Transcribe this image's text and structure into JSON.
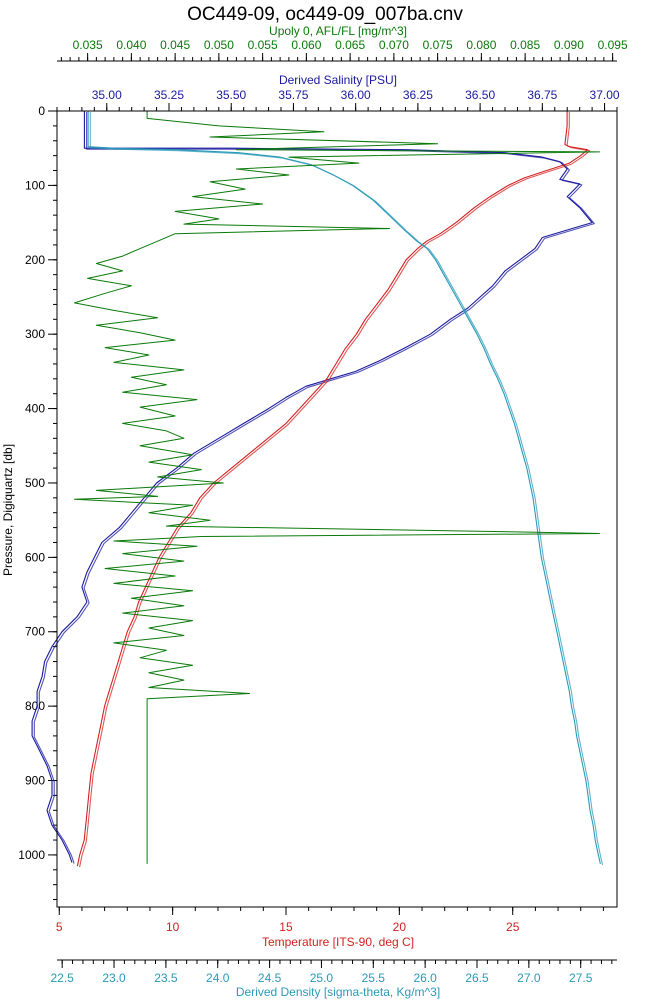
{
  "chart_data": {
    "type": "line",
    "title": "OC449-09, oc449-09_007ba.cnv",
    "colors": {
      "fluorescence": "#0a7a0a",
      "salinity": "#1a1a9e",
      "temperature": "#d42020",
      "density": "#2a9ab8",
      "frame": "#000000"
    },
    "axes": {
      "pressure": {
        "label": "Pressure, Digiquartz [db]",
        "range": [
          0,
          1070
        ],
        "inverted": true,
        "ticks": [
          0,
          100,
          200,
          300,
          400,
          500,
          600,
          700,
          800,
          900,
          1000
        ],
        "tick_labels": [
          "0",
          "100",
          "200",
          "300",
          "400",
          "500",
          "600",
          "700",
          "800",
          "900",
          "1000"
        ]
      },
      "fluorescence": {
        "label": "Upoly 0, AFL/FL [mg/m^3]",
        "range": [
          0.0315,
          0.0955
        ],
        "ticks": [
          0.035,
          0.04,
          0.045,
          0.05,
          0.055,
          0.06,
          0.065,
          0.07,
          0.075,
          0.08,
          0.085,
          0.09,
          0.095
        ],
        "tick_labels": [
          "0.035",
          "0.040",
          "0.045",
          "0.050",
          "0.055",
          "0.060",
          "0.065",
          "0.070",
          "0.075",
          "0.080",
          "0.085",
          "0.090",
          "0.095"
        ]
      },
      "salinity": {
        "label": "Derived Salinity [PSU]",
        "range": [
          34.8,
          37.05
        ],
        "ticks": [
          35.0,
          35.25,
          35.5,
          35.75,
          36.0,
          36.25,
          36.5,
          36.75,
          37.0
        ],
        "tick_labels": [
          "35.00",
          "35.25",
          "35.50",
          "35.75",
          "36.00",
          "36.25",
          "36.50",
          "36.75",
          "37.00"
        ]
      },
      "temperature": {
        "label": "Temperature [ITS-90, deg C]",
        "range": [
          4.9,
          29.6
        ],
        "ticks": [
          5,
          10,
          15,
          20,
          25
        ],
        "tick_labels": [
          "5",
          "10",
          "15",
          "20",
          "25"
        ]
      },
      "density": {
        "label": "Derived Density [sigma-theta, Kg/m^3]",
        "range": [
          22.45,
          27.85
        ],
        "ticks": [
          22.5,
          23.0,
          23.5,
          24.0,
          24.5,
          25.0,
          25.5,
          26.0,
          26.5,
          27.0,
          27.5
        ],
        "tick_labels": [
          "22.5",
          "23.0",
          "23.5",
          "24.0",
          "24.5",
          "25.0",
          "25.5",
          "26.0",
          "26.5",
          "27.0",
          "27.5"
        ]
      }
    },
    "series": [
      {
        "key": "salinity",
        "axis": "salinity",
        "points": [
          [
            34.91,
            0
          ],
          [
            34.91,
            50
          ],
          [
            35.5,
            50
          ],
          [
            36.2,
            52
          ],
          [
            36.6,
            56
          ],
          [
            36.75,
            62
          ],
          [
            36.82,
            68
          ],
          [
            36.85,
            78
          ],
          [
            36.82,
            92
          ],
          [
            36.9,
            98
          ],
          [
            36.88,
            105
          ],
          [
            36.85,
            115
          ],
          [
            36.9,
            130
          ],
          [
            36.95,
            150
          ],
          [
            36.85,
            160
          ],
          [
            36.75,
            170
          ],
          [
            36.72,
            185
          ],
          [
            36.66,
            200
          ],
          [
            36.6,
            215
          ],
          [
            36.55,
            235
          ],
          [
            36.5,
            250
          ],
          [
            36.45,
            265
          ],
          [
            36.38,
            280
          ],
          [
            36.3,
            300
          ],
          [
            36.2,
            318
          ],
          [
            36.1,
            335
          ],
          [
            36.0,
            350
          ],
          [
            35.9,
            360
          ],
          [
            35.8,
            370
          ],
          [
            35.72,
            385
          ],
          [
            35.65,
            400
          ],
          [
            35.55,
            420
          ],
          [
            35.45,
            440
          ],
          [
            35.35,
            460
          ],
          [
            35.28,
            480
          ],
          [
            35.2,
            500
          ],
          [
            35.15,
            520
          ],
          [
            35.1,
            540
          ],
          [
            35.05,
            560
          ],
          [
            34.98,
            580
          ],
          [
            34.95,
            600
          ],
          [
            34.92,
            620
          ],
          [
            34.9,
            640
          ],
          [
            34.92,
            660
          ],
          [
            34.88,
            680
          ],
          [
            34.82,
            700
          ],
          [
            34.78,
            720
          ],
          [
            34.75,
            740
          ],
          [
            34.74,
            760
          ],
          [
            34.72,
            780
          ],
          [
            34.72,
            800
          ],
          [
            34.7,
            820
          ],
          [
            34.7,
            840
          ],
          [
            34.73,
            860
          ],
          [
            34.76,
            880
          ],
          [
            34.78,
            900
          ],
          [
            34.78,
            920
          ],
          [
            34.76,
            940
          ],
          [
            34.78,
            960
          ],
          [
            34.82,
            980
          ],
          [
            34.85,
            1000
          ],
          [
            34.86,
            1010
          ]
        ]
      },
      {
        "key": "temperature",
        "axis": "temperature",
        "points": [
          [
            27.4,
            0
          ],
          [
            27.4,
            20
          ],
          [
            27.3,
            45
          ],
          [
            27.5,
            48
          ],
          [
            28.3,
            52
          ],
          [
            28.0,
            60
          ],
          [
            27.5,
            70
          ],
          [
            26.5,
            80
          ],
          [
            25.5,
            90
          ],
          [
            24.8,
            100
          ],
          [
            24.0,
            115
          ],
          [
            23.3,
            130
          ],
          [
            22.5,
            150
          ],
          [
            21.8,
            165
          ],
          [
            21.2,
            175
          ],
          [
            20.8,
            185
          ],
          [
            20.3,
            200
          ],
          [
            19.9,
            220
          ],
          [
            19.5,
            240
          ],
          [
            19.0,
            260
          ],
          [
            18.5,
            280
          ],
          [
            18.1,
            300
          ],
          [
            17.6,
            320
          ],
          [
            17.2,
            340
          ],
          [
            16.8,
            360
          ],
          [
            16.2,
            380
          ],
          [
            15.6,
            400
          ],
          [
            15.0,
            420
          ],
          [
            14.2,
            440
          ],
          [
            13.4,
            460
          ],
          [
            12.6,
            480
          ],
          [
            11.8,
            500
          ],
          [
            11.2,
            520
          ],
          [
            10.8,
            540
          ],
          [
            10.2,
            560
          ],
          [
            9.8,
            580
          ],
          [
            9.4,
            600
          ],
          [
            9.1,
            620
          ],
          [
            8.8,
            640
          ],
          [
            8.5,
            660
          ],
          [
            8.3,
            680
          ],
          [
            8.0,
            700
          ],
          [
            7.8,
            720
          ],
          [
            7.6,
            740
          ],
          [
            7.4,
            760
          ],
          [
            7.2,
            780
          ],
          [
            7.0,
            800
          ],
          [
            6.8,
            830
          ],
          [
            6.6,
            860
          ],
          [
            6.4,
            890
          ],
          [
            6.3,
            920
          ],
          [
            6.2,
            950
          ],
          [
            6.1,
            980
          ],
          [
            5.9,
            1000
          ],
          [
            5.8,
            1015
          ]
        ]
      },
      {
        "key": "density",
        "axis": "density",
        "points": [
          [
            22.75,
            0
          ],
          [
            22.75,
            48
          ],
          [
            23.0,
            50
          ],
          [
            23.6,
            52
          ],
          [
            24.2,
            56
          ],
          [
            24.6,
            62
          ],
          [
            24.9,
            72
          ],
          [
            25.1,
            85
          ],
          [
            25.3,
            100
          ],
          [
            25.5,
            120
          ],
          [
            25.65,
            140
          ],
          [
            25.8,
            160
          ],
          [
            25.92,
            175
          ],
          [
            26.02,
            185
          ],
          [
            26.1,
            200
          ],
          [
            26.18,
            220
          ],
          [
            26.26,
            240
          ],
          [
            26.34,
            260
          ],
          [
            26.42,
            280
          ],
          [
            26.5,
            300
          ],
          [
            26.57,
            320
          ],
          [
            26.63,
            340
          ],
          [
            26.7,
            360
          ],
          [
            26.76,
            380
          ],
          [
            26.81,
            400
          ],
          [
            26.86,
            420
          ],
          [
            26.9,
            440
          ],
          [
            26.94,
            460
          ],
          [
            26.98,
            480
          ],
          [
            27.01,
            500
          ],
          [
            27.04,
            520
          ],
          [
            27.06,
            540
          ],
          [
            27.08,
            560
          ],
          [
            27.1,
            580
          ],
          [
            27.12,
            600
          ],
          [
            27.15,
            620
          ],
          [
            27.18,
            640
          ],
          [
            27.21,
            660
          ],
          [
            27.24,
            680
          ],
          [
            27.27,
            700
          ],
          [
            27.3,
            720
          ],
          [
            27.33,
            740
          ],
          [
            27.36,
            760
          ],
          [
            27.39,
            780
          ],
          [
            27.41,
            800
          ],
          [
            27.44,
            820
          ],
          [
            27.46,
            840
          ],
          [
            27.49,
            860
          ],
          [
            27.52,
            880
          ],
          [
            27.55,
            900
          ],
          [
            27.57,
            920
          ],
          [
            27.59,
            940
          ],
          [
            27.62,
            960
          ],
          [
            27.64,
            980
          ],
          [
            27.67,
            1000
          ],
          [
            27.69,
            1012
          ]
        ]
      },
      {
        "key": "fluorescence",
        "axis": "fluorescence",
        "points": [
          [
            0.0418,
            0
          ],
          [
            0.0418,
            10
          ],
          [
            0.05,
            20
          ],
          [
            0.062,
            28
          ],
          [
            0.049,
            35
          ],
          [
            0.075,
            44
          ],
          [
            0.052,
            52
          ],
          [
            0.0935,
            55
          ],
          [
            0.058,
            62
          ],
          [
            0.066,
            70
          ],
          [
            0.052,
            78
          ],
          [
            0.058,
            86
          ],
          [
            0.049,
            95
          ],
          [
            0.053,
            105
          ],
          [
            0.047,
            115
          ],
          [
            0.055,
            125
          ],
          [
            0.045,
            135
          ],
          [
            0.05,
            145
          ],
          [
            0.046,
            152
          ],
          [
            0.0695,
            158
          ],
          [
            0.045,
            165
          ],
          [
            0.043,
            175
          ],
          [
            0.041,
            185
          ],
          [
            0.039,
            195
          ],
          [
            0.036,
            205
          ],
          [
            0.039,
            215
          ],
          [
            0.035,
            225
          ],
          [
            0.04,
            235
          ],
          [
            0.037,
            245
          ],
          [
            0.0335,
            258
          ],
          [
            0.038,
            268
          ],
          [
            0.043,
            278
          ],
          [
            0.036,
            288
          ],
          [
            0.041,
            298
          ],
          [
            0.045,
            308
          ],
          [
            0.037,
            318
          ],
          [
            0.042,
            328
          ],
          [
            0.038,
            338
          ],
          [
            0.046,
            348
          ],
          [
            0.04,
            358
          ],
          [
            0.044,
            368
          ],
          [
            0.039,
            378
          ],
          [
            0.0475,
            388
          ],
          [
            0.041,
            398
          ],
          [
            0.045,
            410
          ],
          [
            0.039,
            420
          ],
          [
            0.044,
            430
          ],
          [
            0.046,
            440
          ],
          [
            0.041,
            450
          ],
          [
            0.047,
            462
          ],
          [
            0.042,
            472
          ],
          [
            0.048,
            482
          ],
          [
            0.043,
            492
          ],
          [
            0.0505,
            500
          ],
          [
            0.036,
            510
          ],
          [
            0.043,
            518
          ],
          [
            0.0335,
            522
          ],
          [
            0.047,
            530
          ],
          [
            0.042,
            540
          ],
          [
            0.049,
            550
          ],
          [
            0.044,
            558
          ],
          [
            0.0855,
            566
          ],
          [
            0.0935,
            568
          ],
          [
            0.048,
            572
          ],
          [
            0.038,
            578
          ],
          [
            0.0475,
            585
          ],
          [
            0.039,
            595
          ],
          [
            0.046,
            605
          ],
          [
            0.037,
            615
          ],
          [
            0.045,
            625
          ],
          [
            0.038,
            635
          ],
          [
            0.047,
            645
          ],
          [
            0.04,
            655
          ],
          [
            0.046,
            665
          ],
          [
            0.039,
            675
          ],
          [
            0.047,
            685
          ],
          [
            0.042,
            695
          ],
          [
            0.046,
            705
          ],
          [
            0.038,
            715
          ],
          [
            0.044,
            725
          ],
          [
            0.041,
            735
          ],
          [
            0.047,
            745
          ],
          [
            0.042,
            755
          ],
          [
            0.046,
            765
          ],
          [
            0.042,
            775
          ],
          [
            0.0535,
            783
          ],
          [
            0.0418,
            790
          ],
          [
            0.0418,
            800
          ],
          [
            0.0418,
            1000
          ],
          [
            0.0418,
            1012
          ]
        ]
      }
    ]
  }
}
